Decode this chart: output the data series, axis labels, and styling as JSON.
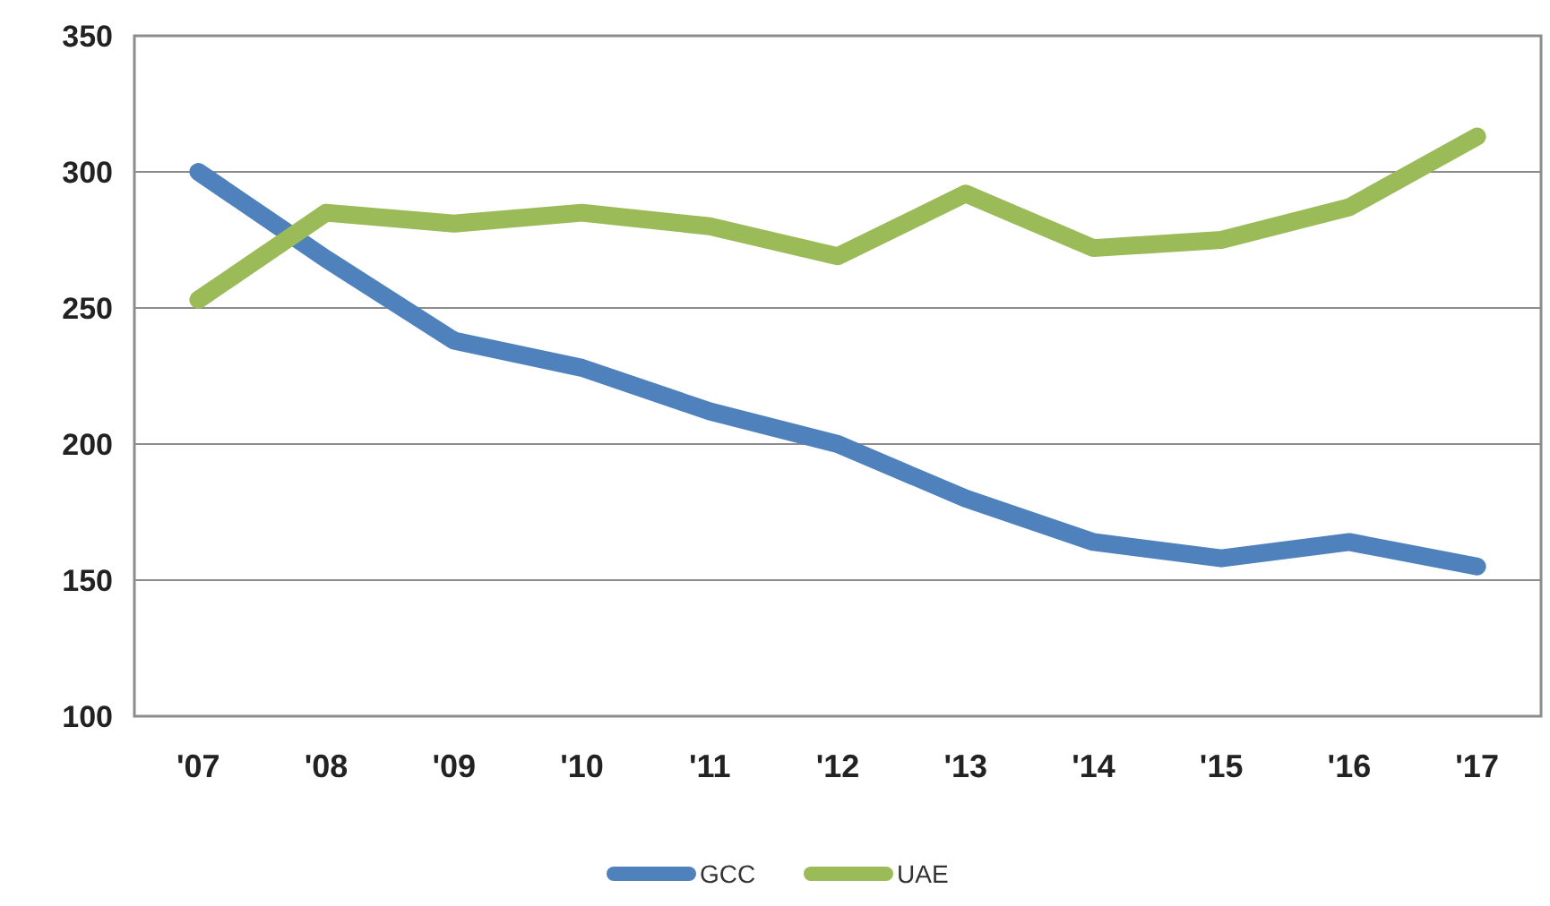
{
  "chart_data": {
    "type": "line",
    "categories": [
      "'07",
      "'08",
      "'09",
      "'10",
      "'11",
      "'12",
      "'13",
      "'14",
      "'15",
      "'16",
      "'17"
    ],
    "series": [
      {
        "name": "GCC",
        "color": "#4f81bd",
        "values": [
          300,
          268,
          238,
          228,
          212,
          200,
          180,
          164,
          158,
          164,
          155
        ]
      },
      {
        "name": "UAE",
        "color": "#9bbb59",
        "values": [
          253,
          285,
          281,
          285,
          280,
          269,
          292,
          272,
          275,
          287,
          313
        ]
      }
    ],
    "ylim": [
      100,
      350
    ],
    "yticks": [
      100,
      150,
      200,
      250,
      300,
      350
    ],
    "grid": "y",
    "legend": "bottom",
    "marker": "none",
    "line_style": "solid"
  }
}
